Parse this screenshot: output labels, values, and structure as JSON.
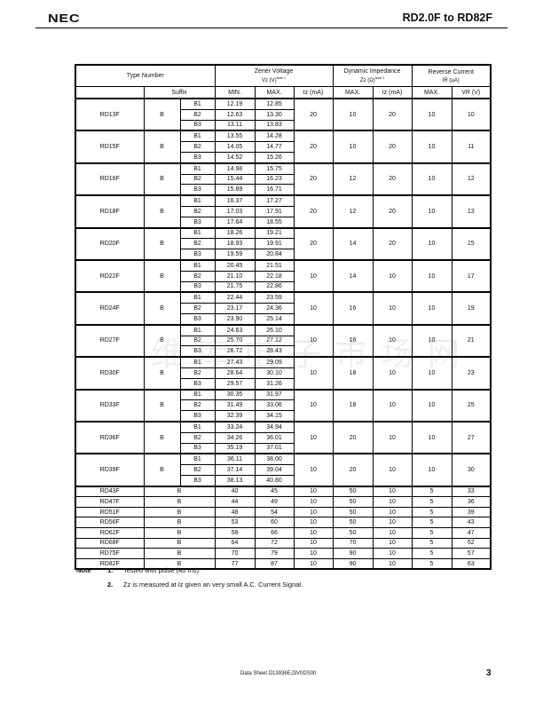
{
  "header": {
    "logo": "NEC",
    "title": "RD2.0F to RD82F"
  },
  "watermark": "维库电子市场网",
  "table": {
    "headers": {
      "type_number": "Type Number",
      "zener_voltage": "Zener Voltage",
      "zener_voltage_unit": "Vz (V)",
      "zener_note": "Note 1",
      "dynamic_impedance": "Dynamic Impedance",
      "dynamic_unit": "Zz (Ω)",
      "dynamic_note": "Note 2",
      "reverse_current": "Reverse Current",
      "reverse_unit": "IR (μA)",
      "suffix": "Suffix",
      "min": "MIN.",
      "max": "MAX.",
      "iz": "Iz (mA)",
      "zz_max": "MAX.",
      "zz_iz": "Iz (mA)",
      "ir_max": "MAX.",
      "vr": "VR (V)"
    },
    "groups": [
      {
        "type": "RD13F",
        "suffix": "B",
        "rows": [
          [
            "B1",
            "12.19",
            "12.85"
          ],
          [
            "B2",
            "12.63",
            "13.30"
          ],
          [
            "B3",
            "13.11",
            "13.83"
          ]
        ],
        "iz": "20",
        "zz": "10",
        "zz_iz": "20",
        "ir": "10",
        "vr": "10"
      },
      {
        "type": "RD15F",
        "suffix": "B",
        "rows": [
          [
            "B1",
            "13.55",
            "14.28"
          ],
          [
            "B2",
            "14.05",
            "14.77"
          ],
          [
            "B3",
            "14.52",
            "15.26"
          ]
        ],
        "iz": "20",
        "zz": "10",
        "zz_iz": "20",
        "ir": "10",
        "vr": "11"
      },
      {
        "type": "RD16F",
        "suffix": "B",
        "rows": [
          [
            "B1",
            "14.98",
            "15.75"
          ],
          [
            "B2",
            "15.44",
            "16.23"
          ],
          [
            "B3",
            "15.89",
            "16.71"
          ]
        ],
        "iz": "20",
        "zz": "12",
        "zz_iz": "20",
        "ir": "10",
        "vr": "12"
      },
      {
        "type": "RD18F",
        "suffix": "B",
        "rows": [
          [
            "B1",
            "16.37",
            "17.27"
          ],
          [
            "B2",
            "17.03",
            "17.91"
          ],
          [
            "B3",
            "17.64",
            "18.55"
          ]
        ],
        "iz": "20",
        "zz": "12",
        "zz_iz": "20",
        "ir": "10",
        "vr": "13"
      },
      {
        "type": "RD20F",
        "suffix": "B",
        "rows": [
          [
            "B1",
            "18.26",
            "19.21"
          ],
          [
            "B2",
            "18.93",
            "19.91"
          ],
          [
            "B3",
            "19.59",
            "20.84"
          ]
        ],
        "iz": "20",
        "zz": "14",
        "zz_iz": "20",
        "ir": "10",
        "vr": "15"
      },
      {
        "type": "RD22F",
        "suffix": "B",
        "rows": [
          [
            "B1",
            "20.45",
            "21.51"
          ],
          [
            "B2",
            "21.10",
            "22.18"
          ],
          [
            "B3",
            "21.75",
            "22.86"
          ]
        ],
        "iz": "10",
        "zz": "14",
        "zz_iz": "10",
        "ir": "10",
        "vr": "17"
      },
      {
        "type": "RD24F",
        "suffix": "B",
        "rows": [
          [
            "B1",
            "22.44",
            "23.59"
          ],
          [
            "B2",
            "23.17",
            "24.36"
          ],
          [
            "B3",
            "23.90",
            "25.14"
          ]
        ],
        "iz": "10",
        "zz": "16",
        "zz_iz": "10",
        "ir": "10",
        "vr": "19"
      },
      {
        "type": "RD27F",
        "suffix": "B",
        "rows": [
          [
            "B1",
            "24.63",
            "26.10"
          ],
          [
            "B2",
            "25.70",
            "27.12"
          ],
          [
            "B3",
            "26.72",
            "28.43"
          ]
        ],
        "iz": "10",
        "zz": "16",
        "zz_iz": "10",
        "ir": "10",
        "vr": "21"
      },
      {
        "type": "RD30F",
        "suffix": "B",
        "rows": [
          [
            "B1",
            "27.43",
            "29.09"
          ],
          [
            "B2",
            "28.64",
            "30.10"
          ],
          [
            "B3",
            "29.57",
            "31.26"
          ]
        ],
        "iz": "10",
        "zz": "18",
        "zz_iz": "10",
        "ir": "10",
        "vr": "23"
      },
      {
        "type": "RD33F",
        "suffix": "B",
        "rows": [
          [
            "B1",
            "30.35",
            "31.97"
          ],
          [
            "B2",
            "31.49",
            "33.06"
          ],
          [
            "B3",
            "32.39",
            "34.15"
          ]
        ],
        "iz": "10",
        "zz": "18",
        "zz_iz": "10",
        "ir": "10",
        "vr": "25"
      },
      {
        "type": "RD36F",
        "suffix": "B",
        "rows": [
          [
            "B1",
            "33.24",
            "34.94"
          ],
          [
            "B2",
            "34.26",
            "36.01"
          ],
          [
            "B3",
            "35.19",
            "37.01"
          ]
        ],
        "iz": "10",
        "zz": "20",
        "zz_iz": "10",
        "ir": "10",
        "vr": "27"
      },
      {
        "type": "RD39F",
        "suffix": "B",
        "rows": [
          [
            "B1",
            "36.11",
            "38.00"
          ],
          [
            "B2",
            "37.14",
            "39.04"
          ],
          [
            "B3",
            "38.13",
            "40.80"
          ]
        ],
        "iz": "10",
        "zz": "20",
        "zz_iz": "10",
        "ir": "10",
        "vr": "30"
      }
    ],
    "singles": [
      [
        "RD43F",
        "B",
        "40",
        "45",
        "10",
        "50",
        "10",
        "5",
        "33"
      ],
      [
        "RD47F",
        "B",
        "44",
        "49",
        "10",
        "50",
        "10",
        "5",
        "36"
      ],
      [
        "RD51F",
        "B",
        "48",
        "54",
        "10",
        "50",
        "10",
        "5",
        "39"
      ],
      [
        "RD56F",
        "B",
        "53",
        "60",
        "10",
        "50",
        "10",
        "5",
        "43"
      ],
      [
        "RD62F",
        "B",
        "58",
        "66",
        "10",
        "50",
        "10",
        "5",
        "47"
      ],
      [
        "RD68F",
        "B",
        "64",
        "72",
        "10",
        "70",
        "10",
        "5",
        "52"
      ],
      [
        "RD75F",
        "B",
        "70",
        "79",
        "10",
        "90",
        "10",
        "5",
        "57"
      ],
      [
        "RD82F",
        "B",
        "77",
        "87",
        "10",
        "90",
        "10",
        "5",
        "63"
      ]
    ]
  },
  "notes": {
    "label": "Note",
    "items": [
      {
        "num": "1.",
        "text": "Tested with pulse (40 ms)."
      },
      {
        "num": "2.",
        "text": "Zz is measured at Iz given an very small A.C. Current Signal."
      }
    ]
  },
  "footer": {
    "doc": "Data Sheet  D13936EJ3V0DS00",
    "page": "3"
  }
}
